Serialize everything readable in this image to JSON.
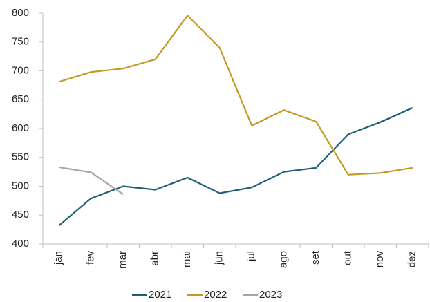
{
  "chart_data": {
    "type": "line",
    "categories": [
      "jan",
      "fev",
      "mar",
      "abr",
      "mai",
      "jun",
      "jul",
      "ago",
      "set",
      "out",
      "nov",
      "dez"
    ],
    "series": [
      {
        "name": "2021",
        "color": "#1f5f78",
        "values": [
          432,
          479,
          500,
          494,
          515,
          488,
          498,
          525,
          532,
          590,
          611,
          636
        ]
      },
      {
        "name": "2022",
        "color": "#c39a1e",
        "values": [
          681,
          698,
          704,
          720,
          796,
          740,
          605,
          632,
          612,
          520,
          523,
          532
        ]
      },
      {
        "name": "2023",
        "color": "#a6a6a6",
        "values": [
          533,
          524,
          486,
          null,
          null,
          null,
          null,
          null,
          null,
          null,
          null,
          null
        ]
      }
    ],
    "ylim": [
      400,
      800
    ],
    "yticks": [
      400,
      450,
      500,
      550,
      600,
      650,
      700,
      750,
      800
    ],
    "grid": false,
    "legend": "bottom"
  }
}
